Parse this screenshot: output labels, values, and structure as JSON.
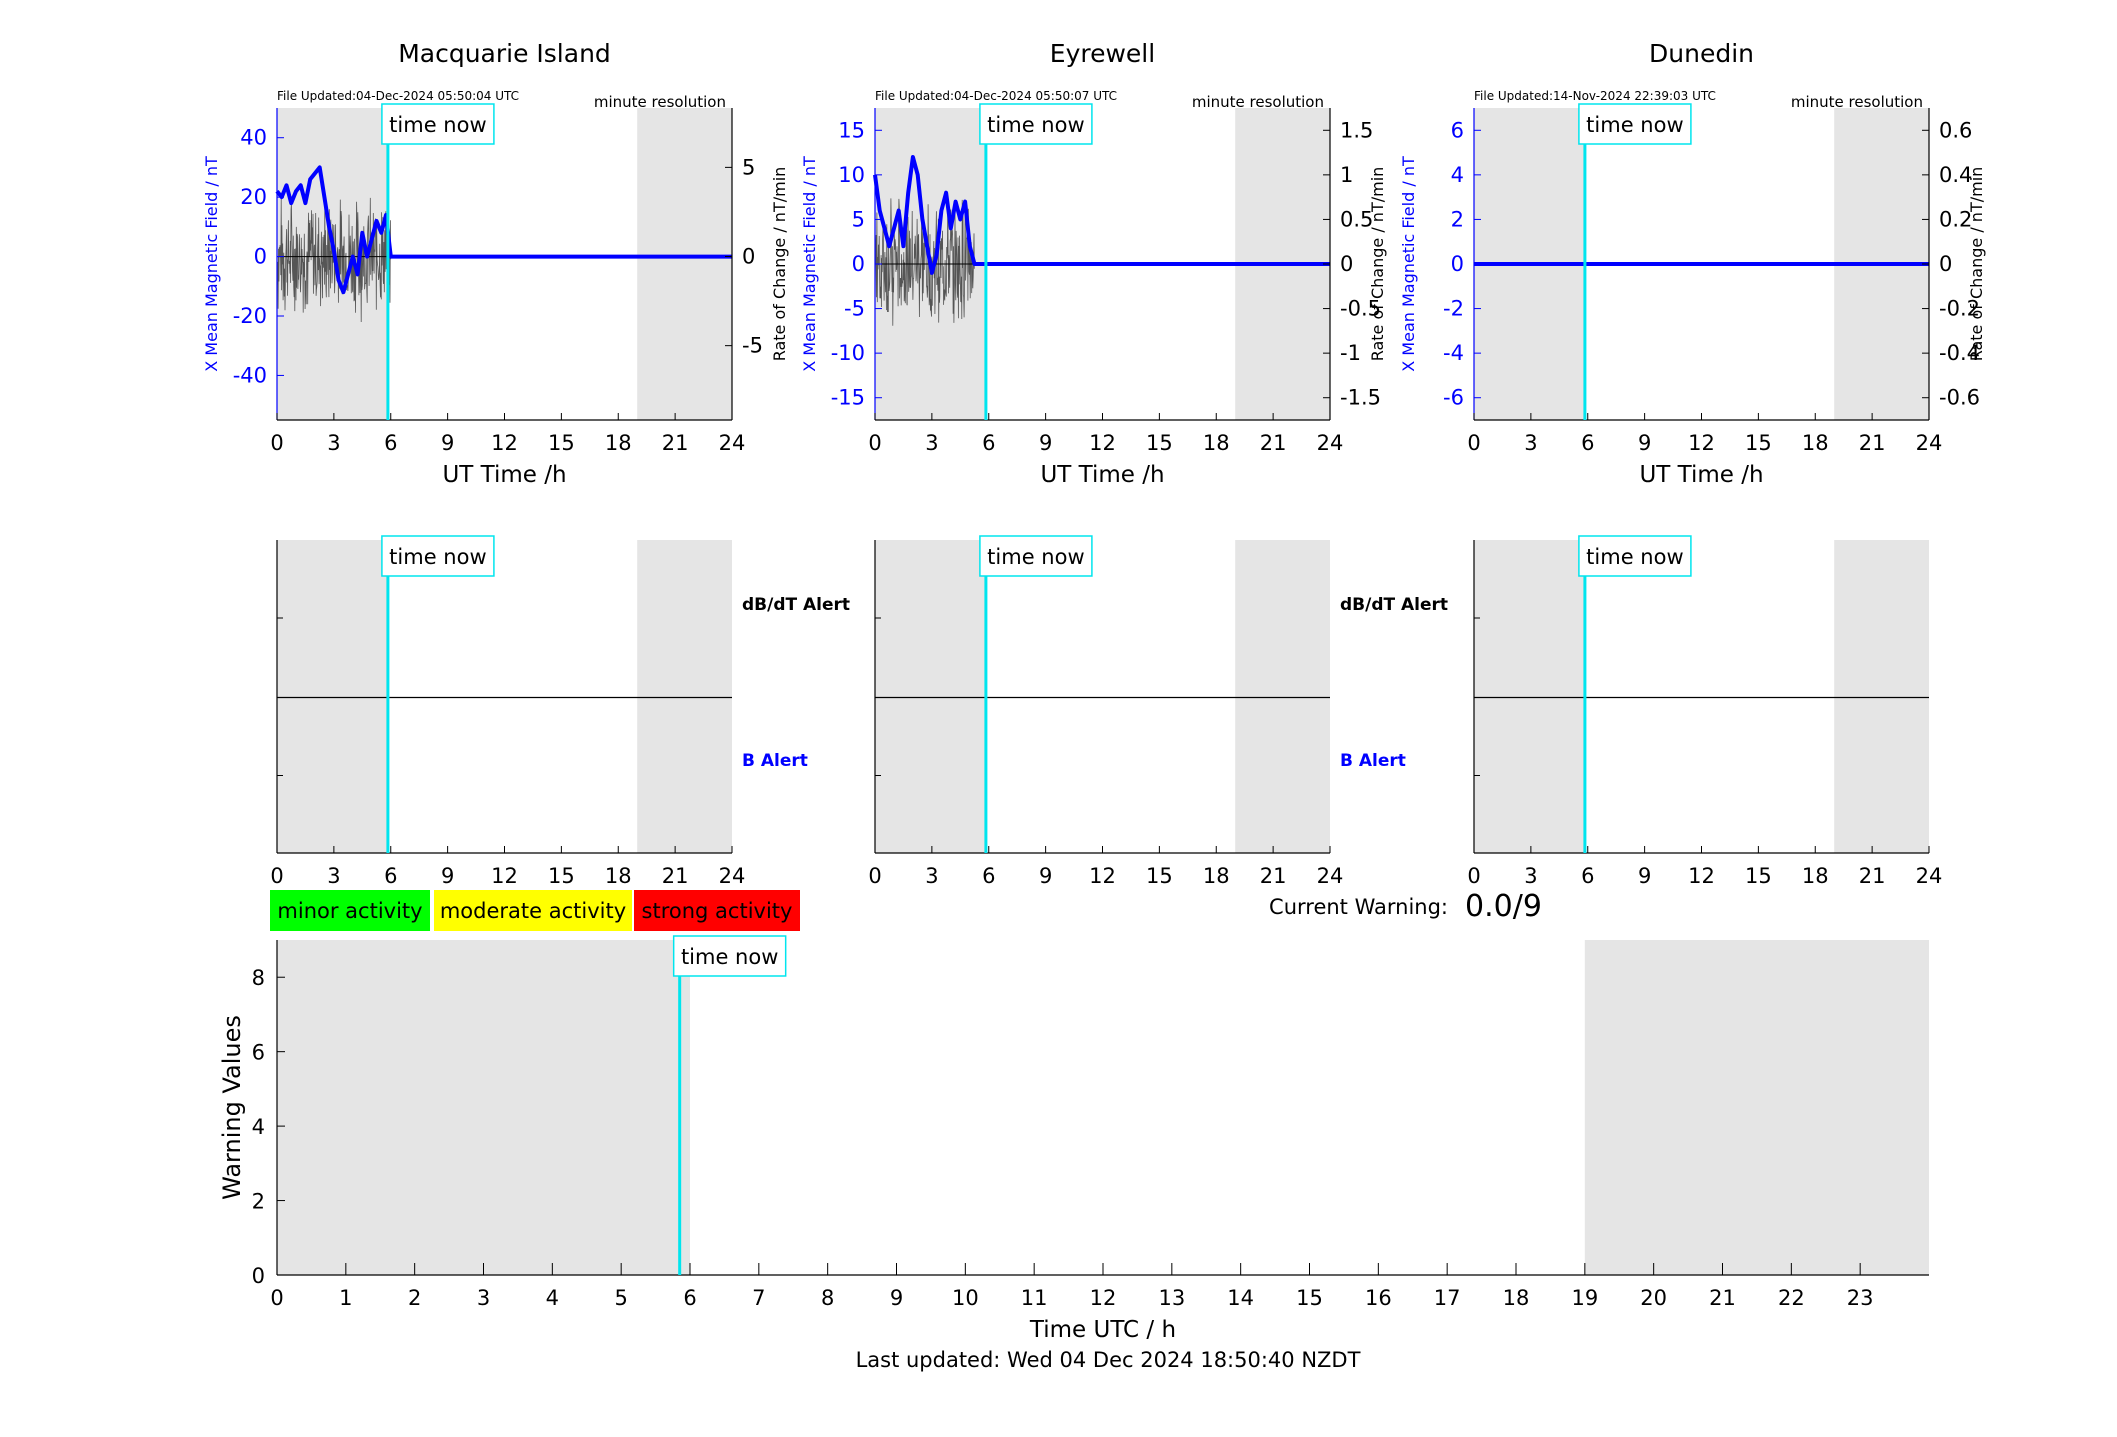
{
  "footer": {
    "last_updated": "Last updated: Wed 04 Dec 2024 18:50:40 NZDT"
  },
  "current_warning": {
    "label": "Current Warning:",
    "value": "0.0/9"
  },
  "activity_legend": [
    {
      "label": "minor activity",
      "color": "#00ff00"
    },
    {
      "label": "moderate activity",
      "color": "#ffff00"
    },
    {
      "label": "strong activity",
      "color": "#ff0000"
    }
  ],
  "colors": {
    "field": "#0000ff",
    "rate": "#555555",
    "time_now": "#00e5ee",
    "night_shade": "#e5e5e5"
  },
  "time_now_label": "time now",
  "time_now_hour": 5.85,
  "chart_data": [
    {
      "type": "line",
      "title": "Macquarie Island",
      "file_updated": "File Updated:04-Dec-2024 05:50:04 UTC",
      "resolution": "minute resolution",
      "xlabel": "UT Time /h",
      "ylabel_left": "X Mean Magnetic Field / nT",
      "ylabel_right": "Rate of Change / nT/min",
      "xlim": [
        0,
        24
      ],
      "xticks": [
        0,
        3,
        6,
        9,
        12,
        15,
        18,
        21,
        24
      ],
      "ylim_left": [
        -55,
        50
      ],
      "yticks_left": [
        40,
        20,
        0,
        -20,
        -40
      ],
      "ylim_right": [
        -9.17,
        8.33
      ],
      "yticks_right": [
        5,
        0,
        -5
      ],
      "shaded_x": [
        [
          0,
          5.85
        ],
        [
          19,
          24
        ]
      ],
      "series": [
        {
          "axis": "left",
          "x": [
            0,
            0.25,
            0.5,
            0.75,
            1,
            1.25,
            1.5,
            1.75,
            2,
            2.25,
            2.5,
            2.75,
            3,
            3.25,
            3.5,
            3.75,
            4,
            4.25,
            4.5,
            4.75,
            5,
            5.25,
            5.5,
            5.75,
            6,
            24
          ],
          "y": [
            22,
            20,
            24,
            18,
            22,
            24,
            18,
            26,
            28,
            30,
            20,
            10,
            2,
            -8,
            -12,
            -6,
            0,
            -6,
            8,
            0,
            6,
            12,
            8,
            14,
            0,
            0
          ]
        }
      ]
    },
    {
      "type": "line",
      "title": "Eyrewell",
      "file_updated": "File Updated:04-Dec-2024 05:50:07 UTC",
      "resolution": "minute resolution",
      "xlabel": "UT Time /h",
      "ylabel_left": "X Mean Magnetic Field / nT",
      "ylabel_right": "Rate of Change / nT/min",
      "xlim": [
        0,
        24
      ],
      "xticks": [
        0,
        3,
        6,
        9,
        12,
        15,
        18,
        21,
        24
      ],
      "ylim_left": [
        -17.5,
        17.5
      ],
      "yticks_left": [
        15,
        10,
        5,
        0,
        -5,
        -10,
        -15
      ],
      "ylim_right": [
        -1.75,
        1.75
      ],
      "yticks_right": [
        1.5,
        1,
        0.5,
        0,
        -0.5,
        -1,
        -1.5
      ],
      "shaded_x": [
        [
          0,
          5.85
        ],
        [
          19,
          24
        ]
      ],
      "series": [
        {
          "axis": "left",
          "x": [
            0,
            0.25,
            0.5,
            0.75,
            1,
            1.25,
            1.5,
            1.75,
            2,
            2.25,
            2.5,
            2.75,
            3,
            3.25,
            3.5,
            3.75,
            4,
            4.25,
            4.5,
            4.75,
            5,
            5.25,
            24
          ],
          "y": [
            10,
            6,
            4,
            2,
            4,
            6,
            2,
            8,
            12,
            10,
            5,
            2,
            -1,
            1,
            6,
            8,
            4,
            7,
            5,
            7,
            2,
            0,
            0
          ]
        }
      ]
    },
    {
      "type": "line",
      "title": "Dunedin",
      "file_updated": "File Updated:14-Nov-2024 22:39:03 UTC",
      "resolution": "minute resolution",
      "xlabel": "UT Time /h",
      "ylabel_left": "X Mean Magnetic Field / nT",
      "ylabel_right": "Rate of Change / nT/min",
      "xlim": [
        0,
        24
      ],
      "xticks": [
        0,
        3,
        6,
        9,
        12,
        15,
        18,
        21,
        24
      ],
      "ylim_left": [
        -7,
        7
      ],
      "yticks_left": [
        6,
        4,
        2,
        0,
        -2,
        -4,
        -6
      ],
      "ylim_right": [
        -0.7,
        0.7
      ],
      "yticks_right": [
        0.6,
        0.4,
        0.2,
        0,
        -0.2,
        -0.4,
        -0.6
      ],
      "shaded_x": [
        [
          0,
          5.85
        ],
        [
          19,
          24
        ]
      ],
      "series": [
        {
          "axis": "left",
          "x": [
            0,
            24
          ],
          "y": [
            0,
            0
          ]
        }
      ]
    },
    {
      "type": "line",
      "title": "",
      "upper_label": "dB/dT Alert",
      "lower_label": "B Alert",
      "xlim": [
        0,
        24
      ],
      "xticks": [
        0,
        3,
        6,
        9,
        12,
        15,
        18,
        21,
        24
      ],
      "shaded_x": [
        [
          0,
          5.85
        ],
        [
          19,
          24
        ]
      ]
    },
    {
      "type": "line",
      "title": "",
      "upper_label": "dB/dT Alert",
      "lower_label": "B Alert",
      "xlim": [
        0,
        24
      ],
      "xticks": [
        0,
        3,
        6,
        9,
        12,
        15,
        18,
        21,
        24
      ],
      "shaded_x": [
        [
          0,
          5.85
        ],
        [
          19,
          24
        ]
      ]
    },
    {
      "type": "line",
      "title": "",
      "xlim": [
        0,
        24
      ],
      "xticks": [
        0,
        3,
        6,
        9,
        12,
        15,
        18,
        21,
        24
      ],
      "shaded_x": [
        [
          0,
          5.85
        ],
        [
          19,
          24
        ]
      ]
    },
    {
      "type": "bar",
      "title": "",
      "xlabel": "Time UTC / h",
      "ylabel": "Warning Values",
      "xlim": [
        0,
        24
      ],
      "xticks": [
        0,
        1,
        2,
        3,
        4,
        5,
        6,
        7,
        8,
        9,
        10,
        11,
        12,
        13,
        14,
        15,
        16,
        17,
        18,
        19,
        20,
        21,
        22,
        23
      ],
      "ylim": [
        0,
        9
      ],
      "yticks": [
        0,
        2,
        4,
        6,
        8
      ],
      "shaded_x": [
        [
          0,
          6
        ],
        [
          19,
          24
        ]
      ],
      "values": []
    }
  ]
}
